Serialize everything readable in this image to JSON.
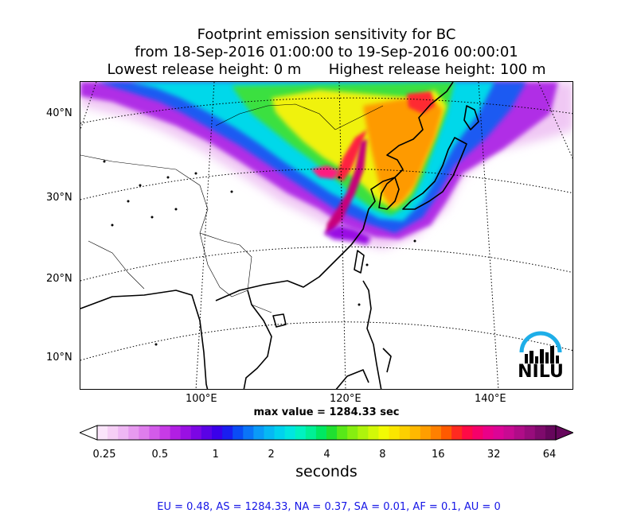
{
  "title": {
    "line1": "Footprint emission sensitivity for BC",
    "line2": "from 18-Sep-2016 01:00:00 to 19-Sep-2016 00:00:01",
    "line3": "Lowest release height: 0 m      Highest release height: 100 m"
  },
  "map": {
    "lat_labels": [
      "40°N",
      "30°N",
      "20°N",
      "10°N"
    ],
    "lon_labels": [
      "100°E",
      "120°E",
      "140°E"
    ],
    "logo_text": "NILU"
  },
  "max_value_text": "max value = 1284.33 sec",
  "colorbar": {
    "ticks": [
      "0.25",
      "0.5",
      "1",
      "2",
      "4",
      "8",
      "16",
      "32",
      "64"
    ],
    "label": "seconds",
    "colors": [
      "#fbe5fb",
      "#f6cff6",
      "#efb7f4",
      "#e79af0",
      "#df7ded",
      "#d35bea",
      "#c73be6",
      "#b11fe3",
      "#9a10e3",
      "#7c06e4",
      "#5a02e6",
      "#3a00ea",
      "#1a1ef0",
      "#0a4cf5",
      "#0a74f8",
      "#0a9af8",
      "#06b8f4",
      "#00d2ee",
      "#00e6e0",
      "#00f2c0",
      "#00f095",
      "#00e862",
      "#20e030",
      "#58e818",
      "#86ee10",
      "#aef40c",
      "#d2f808",
      "#f2fa04",
      "#fae600",
      "#fcd000",
      "#feb800",
      "#fe9e00",
      "#fe8000",
      "#fe5a00",
      "#fe2a20",
      "#fe0a46",
      "#f6006a",
      "#ea0088",
      "#dc0496",
      "#c80a92",
      "#b00c88",
      "#980c7c",
      "#7e0a6c",
      "#66065c"
    ]
  },
  "stats_text": "EU = 0.48,  AS = 1284.33,  NA = 0.37,  SA = 0.01,  AF = 0.1,  AU = 0"
}
